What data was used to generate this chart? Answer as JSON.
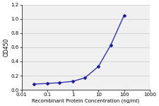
{
  "x": [
    0.03,
    0.1,
    0.3,
    1,
    3,
    10,
    30,
    100
  ],
  "y": [
    0.08,
    0.09,
    0.1,
    0.12,
    0.17,
    0.33,
    0.63,
    1.05
  ],
  "line_color": "#3333aa",
  "marker_color": "#1a1a99",
  "marker": "D",
  "markersize": 2.5,
  "linewidth": 1.0,
  "xlabel": "Recombinant Protein Concentration (ng/ml)",
  "ylabel": "OD450",
  "xlim": [
    0.01,
    1000
  ],
  "ylim": [
    0.0,
    1.2
  ],
  "yticks": [
    0.0,
    0.2,
    0.4,
    0.6,
    0.8,
    1.0,
    1.2
  ],
  "xtick_vals": [
    0.01,
    0.1,
    1,
    10,
    100,
    1000
  ],
  "xtick_labels": [
    "0.01",
    "0.1",
    "1",
    "10",
    "100",
    "1000"
  ],
  "grid_color": "#d0d0d0",
  "plot_bg_color": "#f0f0f0",
  "fig_bg_color": "#ffffff",
  "xlabel_fontsize": 5.0,
  "ylabel_fontsize": 5.5,
  "tick_fontsize": 5.0
}
